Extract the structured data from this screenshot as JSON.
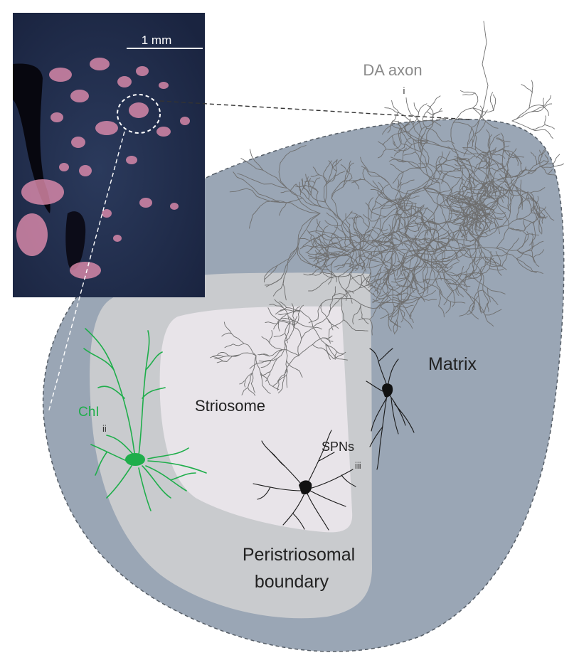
{
  "labels": {
    "scale_bar": "1 mm",
    "da_axon": "DA axon",
    "da_axon_numeral": "i",
    "chi": "ChI",
    "chi_numeral": "ii",
    "spns": "SPNs",
    "spns_numeral": "iii",
    "striosome": "Striosome",
    "matrix": "Matrix",
    "peri_line1": "Peristriosomal",
    "peri_line2": "boundary"
  },
  "colors": {
    "matrix": "#9aa6b5",
    "boundary": "#c9cbce",
    "striosome": "#e8e4e9",
    "axon": "#6f6f6f",
    "chi": "#1fae4b",
    "spn": "#1a1a1a",
    "micrograph_bg": "#1f2a44",
    "micrograph_patch": "#e58fb0"
  }
}
